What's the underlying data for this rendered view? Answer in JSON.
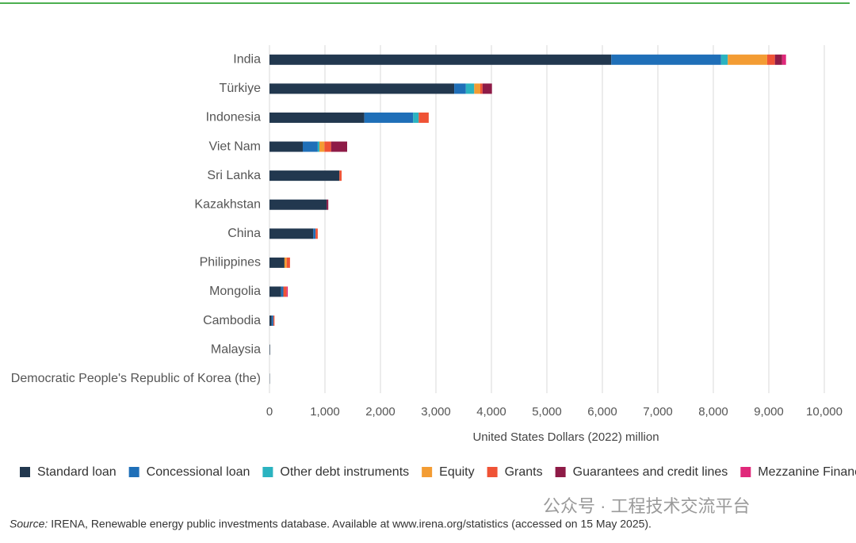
{
  "chart_data": {
    "type": "stacked-bar-horizontal",
    "categories": [
      "India",
      "Türkiye",
      "Indonesia",
      "Viet Nam",
      "Sri Lanka",
      "Kazakhstan",
      "China",
      "Philippines",
      "Mongolia",
      "Cambodia",
      "Malaysia",
      "Democratic People's Republic of Korea (the)"
    ],
    "series": [
      {
        "name": "Standard loan",
        "color": "#22384f",
        "values": [
          6160,
          3330,
          1710,
          600,
          1260,
          1030,
          790,
          270,
          210,
          40,
          10,
          5
        ]
      },
      {
        "name": "Concessional loan",
        "color": "#1f6fb8",
        "values": [
          1980,
          210,
          880,
          270,
          0,
          0,
          40,
          0,
          40,
          30,
          0,
          0
        ]
      },
      {
        "name": "Other debt instruments",
        "color": "#2bb3c0",
        "values": [
          120,
          150,
          100,
          30,
          0,
          0,
          0,
          0,
          0,
          0,
          0,
          0
        ]
      },
      {
        "name": "Equity",
        "color": "#f39c33",
        "values": [
          710,
          110,
          0,
          90,
          0,
          0,
          0,
          40,
          0,
          0,
          0,
          0
        ]
      },
      {
        "name": "Grants",
        "color": "#ef5336",
        "values": [
          140,
          40,
          180,
          120,
          40,
          0,
          40,
          60,
          60,
          20,
          0,
          0
        ]
      },
      {
        "name": "Guarantees and credit lines",
        "color": "#8e1b47",
        "values": [
          130,
          170,
          0,
          290,
          0,
          30,
          0,
          0,
          0,
          0,
          0,
          0
        ]
      },
      {
        "name": "Mezzanine Finance",
        "color": "#e0287a",
        "values": [
          70,
          0,
          0,
          0,
          0,
          0,
          0,
          0,
          20,
          0,
          0,
          0
        ]
      }
    ],
    "xlim": [
      0,
      10000
    ],
    "xticks": [
      0,
      {
        "value": 1000,
        "label": "1,000"
      },
      {
        "value": 2000,
        "label": "2,000"
      },
      {
        "value": 3000,
        "label": "3,000"
      },
      {
        "value": 4000,
        "label": "4,000"
      },
      {
        "value": 5000,
        "label": "5,000"
      },
      {
        "value": 6000,
        "label": "6,000"
      },
      {
        "value": 7000,
        "label": "7,000"
      },
      {
        "value": 8000,
        "label": "8,000"
      },
      {
        "value": 9000,
        "label": "9,000"
      },
      {
        "value": 10000,
        "label": "10,000"
      }
    ],
    "x_label": "United States Dollars (2022) million",
    "grid": true,
    "legend": "bottom",
    "source_label": "Source:",
    "source": "IRENA, Renewable energy public investments database. Available at www.irena.org/statistics (accessed on 15 May 2025).",
    "watermark": "公众号 · 工程技术交流平台"
  }
}
